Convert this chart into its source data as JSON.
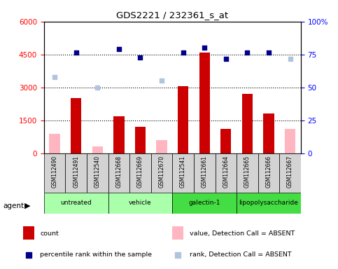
{
  "title": "GDS2221 / 232361_s_at",
  "samples": [
    "GSM112490",
    "GSM112491",
    "GSM112540",
    "GSM112668",
    "GSM112669",
    "GSM112670",
    "GSM112541",
    "GSM112661",
    "GSM112664",
    "GSM112665",
    "GSM112666",
    "GSM112667"
  ],
  "count_present": [
    null,
    2500,
    null,
    1700,
    1200,
    null,
    3050,
    4600,
    1100,
    2700,
    1800,
    null
  ],
  "count_absent": [
    900,
    null,
    300,
    null,
    null,
    600,
    null,
    null,
    null,
    null,
    null,
    1100
  ],
  "rank_present": [
    null,
    76.5,
    null,
    79.2,
    72.5,
    null,
    76.5,
    80.0,
    71.5,
    76.5,
    76.5,
    null
  ],
  "rank_absent": [
    58.0,
    null,
    50.0,
    null,
    null,
    55.0,
    null,
    null,
    null,
    null,
    null,
    71.5
  ],
  "ylim_left": [
    0,
    6000
  ],
  "ylim_right": [
    0,
    100
  ],
  "yticks_left": [
    0,
    1500,
    3000,
    4500,
    6000
  ],
  "yticks_right": [
    0,
    25,
    50,
    75,
    100
  ],
  "bar_color_present": "#CC0000",
  "bar_color_absent": "#FFB6C1",
  "dot_color_present": "#00008B",
  "dot_color_absent": "#B0C4DE",
  "group_configs": [
    {
      "label": "untreated",
      "start": 0,
      "end": 2,
      "color": "#AAFFAA"
    },
    {
      "label": "vehicle",
      "start": 3,
      "end": 5,
      "color": "#AAFFAA"
    },
    {
      "label": "galectin-1",
      "start": 6,
      "end": 8,
      "color": "#44DD44"
    },
    {
      "label": "lipopolysaccharide",
      "start": 9,
      "end": 11,
      "color": "#44DD44"
    }
  ],
  "legend_items": [
    {
      "label": "count",
      "color": "#CC0000",
      "type": "bar"
    },
    {
      "label": "percentile rank within the sample",
      "color": "#00008B",
      "type": "dot"
    },
    {
      "label": "value, Detection Call = ABSENT",
      "color": "#FFB6C1",
      "type": "bar"
    },
    {
      "label": "rank, Detection Call = ABSENT",
      "color": "#B0C4DE",
      "type": "dot"
    }
  ]
}
